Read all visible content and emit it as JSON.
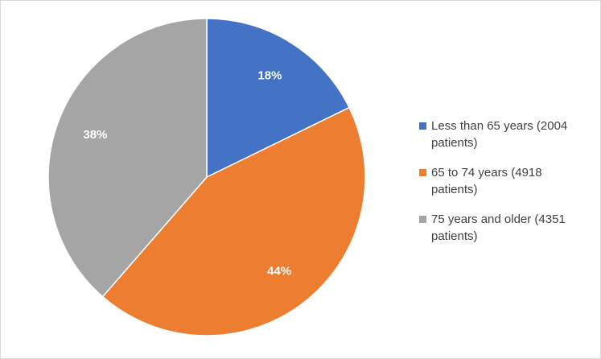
{
  "chart_data": {
    "type": "pie",
    "slices": [
      {
        "label": "Less than 65 years (2004 patients)",
        "value": 2004,
        "percent_label": "18%",
        "color": "#4472C4"
      },
      {
        "label": "65 to 74 years (4918 patients)",
        "value": 4918,
        "percent_label": "44%",
        "color": "#ED7D31"
      },
      {
        "label": "75 years and older (4351 patients)",
        "value": 4351,
        "percent_label": "38%",
        "color": "#A5A5A5"
      }
    ],
    "start_angle": "12 o'clock",
    "direction": "clockwise",
    "legend_position": "right"
  }
}
